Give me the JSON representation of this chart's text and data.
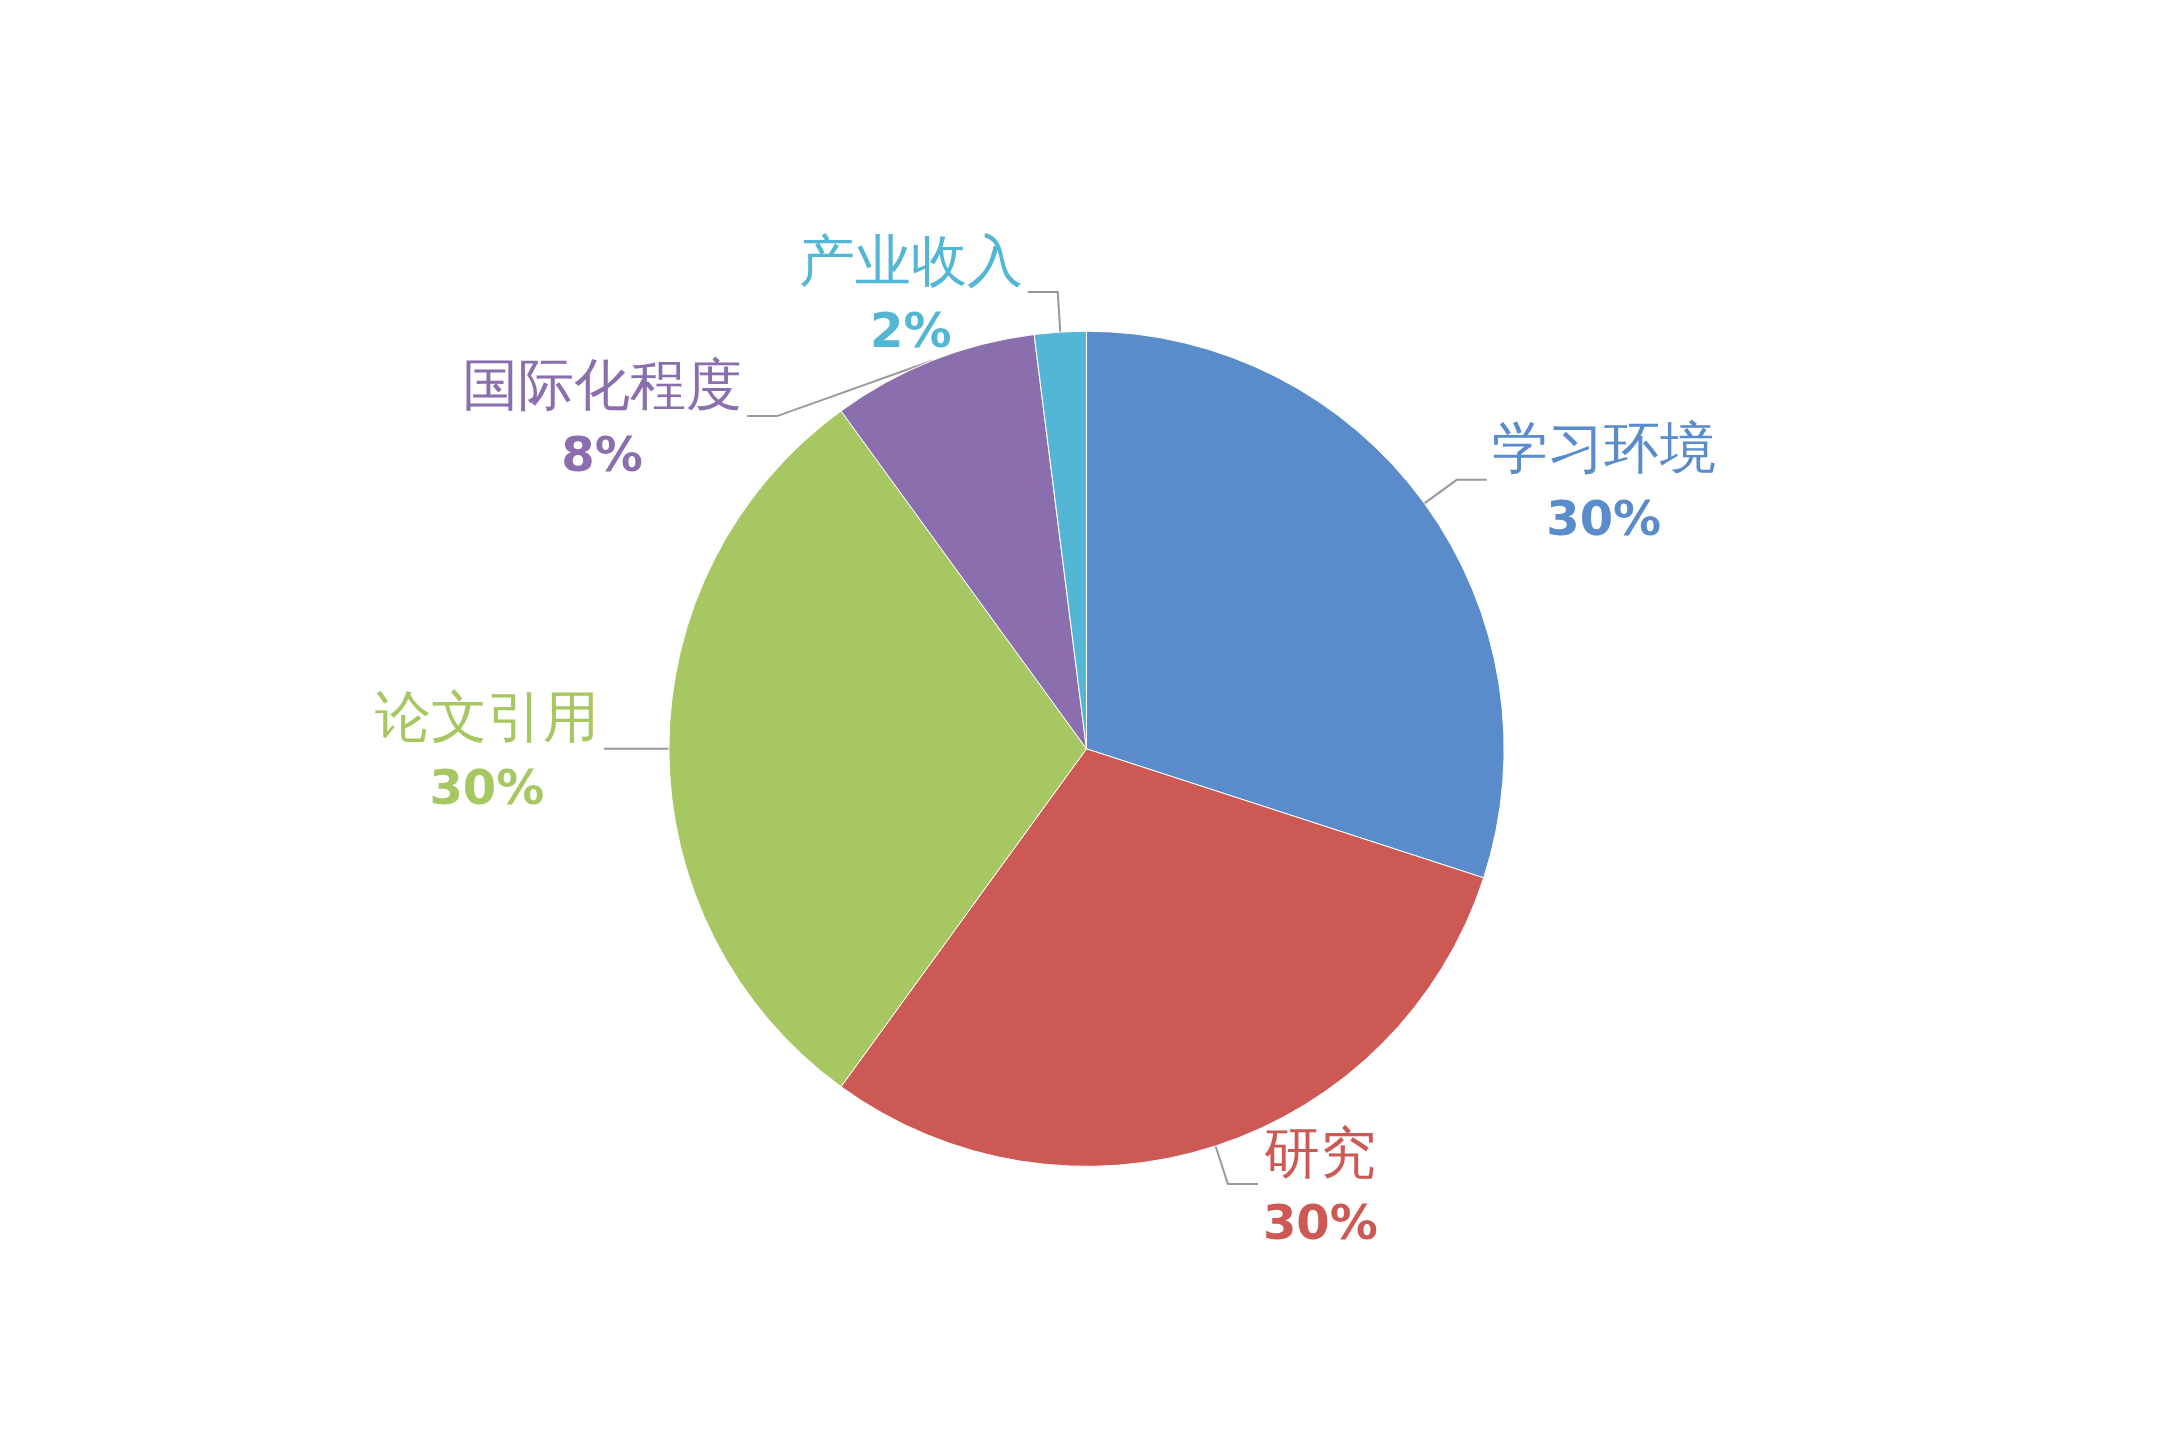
{
  "chart_data": {
    "type": "pie",
    "categories": [
      "学习环境",
      "研究",
      "论文引用",
      "国际化程度",
      "产业收入"
    ],
    "values": [
      30,
      30,
      30,
      8,
      2
    ],
    "value_labels": [
      "30%",
      "30%",
      "30%",
      "8%",
      "2%"
    ],
    "colors": [
      "#5a8bcb",
      "#cd5955",
      "#a6c761",
      "#8b6eae",
      "#52b6d4"
    ],
    "legend": false
  }
}
